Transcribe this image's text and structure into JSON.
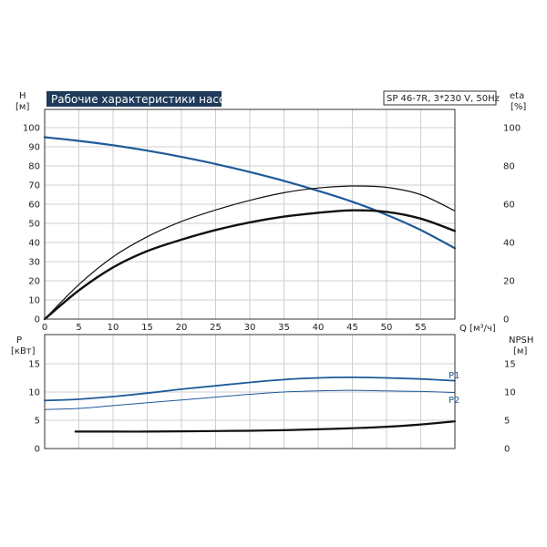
{
  "chart_data": [
    {
      "type": "line",
      "title": "Рабочие характеристики насоса",
      "subtitle": "SP 46-7R, 3*230 V, 50Hz",
      "xlabel": "Q [м³/ч]",
      "ylabel_left": [
        "H",
        "[м]"
      ],
      "ylabel_right": [
        "eta",
        "[%]"
      ],
      "xlim": [
        0,
        60
      ],
      "ylim": [
        0,
        110
      ],
      "y2lim": [
        0,
        110
      ],
      "x_ticks": [
        "0",
        "5",
        "10",
        "15",
        "20",
        "25",
        "30",
        "35",
        "40",
        "45",
        "50",
        "55"
      ],
      "y_ticks": [
        "0",
        "10",
        "20",
        "30",
        "40",
        "50",
        "60",
        "70",
        "80",
        "90",
        "100"
      ],
      "y2_ticks": [
        "0",
        "20",
        "40",
        "60",
        "80",
        "100"
      ],
      "grid": true,
      "series": [
        {
          "axis": "left",
          "color": "#1f5a9a",
          "width": 2.2,
          "x": [
            0,
            4.5,
            10,
            15,
            20,
            25,
            30,
            35,
            40,
            45,
            50,
            55,
            60
          ],
          "y": [
            95,
            93.3,
            90.8,
            88,
            84.7,
            81,
            76.8,
            72.2,
            67,
            61.3,
            54.5,
            46.5,
            37
          ]
        },
        {
          "axis": "right",
          "color": "#111111",
          "width": 1.2,
          "x": [
            0,
            5,
            10,
            15,
            20,
            25,
            30,
            35,
            40,
            45,
            50,
            55,
            60
          ],
          "y": [
            0,
            18,
            32.5,
            43,
            51,
            57,
            62,
            66,
            68.5,
            69.5,
            68.8,
            65,
            56.5
          ]
        },
        {
          "axis": "right",
          "color": "#111111",
          "width": 2.4,
          "x": [
            0,
            5,
            10,
            15,
            20,
            25,
            30,
            35,
            40,
            45,
            50,
            55,
            60
          ],
          "y": [
            0,
            15,
            27,
            35.5,
            41.5,
            46.5,
            50.5,
            53.5,
            55.5,
            56.8,
            56,
            52.5,
            46
          ]
        }
      ]
    },
    {
      "type": "line",
      "ylabel_left": [
        "P",
        "[кВт]"
      ],
      "ylabel_right": [
        "NPSH",
        "[м]"
      ],
      "xlim": [
        0,
        60
      ],
      "ylim": [
        0,
        20
      ],
      "y2lim": [
        0,
        20
      ],
      "y_ticks": [
        "0",
        "5",
        "10",
        "15"
      ],
      "y2_ticks": [
        "0",
        "5",
        "10",
        "15"
      ],
      "grid": true,
      "series": [
        {
          "name": "P1",
          "axis": "left",
          "color": "#1f5a9a",
          "width": 1.8,
          "x": [
            0,
            4.5,
            10,
            15,
            20,
            25,
            30,
            35,
            40,
            45,
            50,
            55,
            60
          ],
          "y": [
            8.5,
            8.7,
            9.2,
            9.8,
            10.5,
            11.1,
            11.7,
            12.2,
            12.5,
            12.6,
            12.5,
            12.3,
            12.0
          ]
        },
        {
          "name": "P2",
          "axis": "left",
          "color": "#1f5a9a",
          "width": 1.0,
          "x": [
            0,
            5,
            10,
            15,
            20,
            25,
            30,
            35,
            40,
            45,
            50,
            55,
            60
          ],
          "y": [
            6.9,
            7.1,
            7.6,
            8.1,
            8.6,
            9.1,
            9.6,
            10.0,
            10.2,
            10.3,
            10.2,
            10.1,
            9.9
          ]
        },
        {
          "axis": "right",
          "color": "#111111",
          "width": 2.2,
          "x": [
            4.5,
            10,
            15,
            20,
            25,
            30,
            35,
            40,
            45,
            50,
            55,
            60
          ],
          "y": [
            3.0,
            3.0,
            3.0,
            3.05,
            3.1,
            3.15,
            3.25,
            3.4,
            3.6,
            3.85,
            4.25,
            4.8
          ]
        }
      ]
    }
  ]
}
